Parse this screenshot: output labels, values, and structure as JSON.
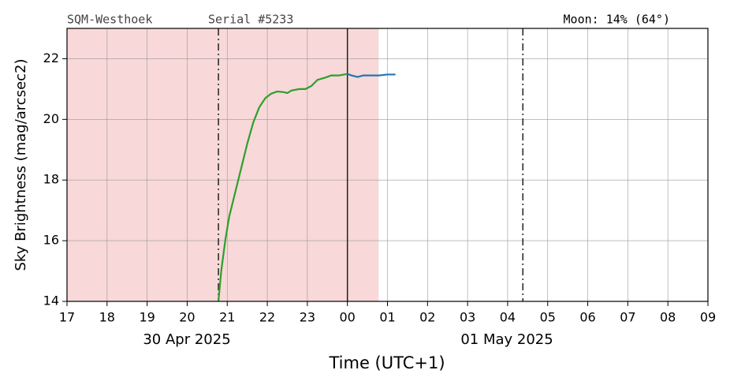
{
  "chart_data": {
    "type": "line",
    "station": "SQM-Westhoek",
    "serial": "Serial #5233",
    "moon": "Moon: 14% (64°)",
    "ylabel": "Sky Brightness (mag/arcsec2)",
    "xlabel": "Time (UTC+1)",
    "date_labels": [
      "30 Apr 2025",
      "01 May 2025"
    ],
    "xlim": [
      17,
      33
    ],
    "ylim": [
      14,
      23
    ],
    "xticks": [
      17,
      18,
      19,
      20,
      21,
      22,
      23,
      {
        "value": 24,
        "label": "00"
      },
      {
        "value": 25,
        "label": "01"
      },
      {
        "value": 26,
        "label": "02"
      },
      {
        "value": 27,
        "label": "03"
      },
      {
        "value": 28,
        "label": "04"
      },
      {
        "value": 29,
        "label": "05"
      },
      {
        "value": 30,
        "label": "06"
      },
      {
        "value": 31,
        "label": "07"
      },
      {
        "value": 32,
        "label": "08"
      },
      {
        "value": 33,
        "label": "09"
      }
    ],
    "yticks": [
      14,
      16,
      18,
      20,
      22
    ],
    "grid": true,
    "shade": {
      "x": [
        17,
        24.78
      ],
      "color": "#f8d8d8"
    },
    "vlines": [
      {
        "x": 20.78,
        "style": "dashdot"
      },
      {
        "x": 24.0,
        "style": "solid"
      },
      {
        "x": 28.38,
        "style": "dashdot"
      }
    ],
    "series": [
      {
        "color": "#2ca02c",
        "x": [
          20.78,
          20.85,
          20.95,
          21.05,
          21.2,
          21.35,
          21.5,
          21.65,
          21.8,
          21.95,
          22.1,
          22.25,
          22.4,
          22.5,
          22.6,
          22.8,
          22.95,
          23.1,
          23.25,
          23.45,
          23.6,
          23.8,
          24.0
        ],
        "values": [
          14,
          15,
          16,
          16.8,
          17.6,
          18.4,
          19.2,
          19.9,
          20.4,
          20.7,
          20.85,
          20.92,
          20.9,
          20.87,
          20.95,
          21.0,
          21.0,
          21.1,
          21.3,
          21.38,
          21.45,
          21.45,
          21.5
        ]
      },
      {
        "color": "#1f77b4",
        "x": [
          24.0,
          24.1,
          24.25,
          24.4,
          24.6,
          24.8,
          25.0,
          25.2
        ],
        "values": [
          21.5,
          21.45,
          21.4,
          21.45,
          21.45,
          21.45,
          21.48,
          21.48
        ]
      }
    ]
  }
}
